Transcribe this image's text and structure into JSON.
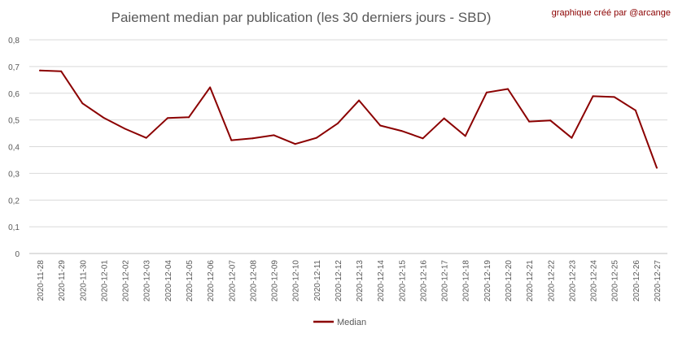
{
  "chart_data": {
    "type": "line",
    "title": "Paiement median par publication (les 30 derniers jours - SBD)",
    "credit": "graphique créé par @arcange",
    "xlabel": "",
    "ylabel": "",
    "ylim": [
      0,
      0.8
    ],
    "yticks": [
      "0",
      "0,1",
      "0,2",
      "0,3",
      "0,4",
      "0,5",
      "0,6",
      "0,7",
      "0,8"
    ],
    "grid": true,
    "legend_position": "bottom",
    "categories": [
      "2020-11-28",
      "2020-11-29",
      "2020-11-30",
      "2020-12-01",
      "2020-12-02",
      "2020-12-03",
      "2020-12-04",
      "2020-12-05",
      "2020-12-06",
      "2020-12-07",
      "2020-12-08",
      "2020-12-09",
      "2020-12-10",
      "2020-12-11",
      "2020-12-12",
      "2020-12-13",
      "2020-12-14",
      "2020-12-15",
      "2020-12-16",
      "2020-12-17",
      "2020-12-18",
      "2020-12-19",
      "2020-12-20",
      "2020-12-21",
      "2020-12-22",
      "2020-12-23",
      "2020-12-24",
      "2020-12-25",
      "2020-12-26",
      "2020-12-27"
    ],
    "series": [
      {
        "name": "Median",
        "color": "#8b0000",
        "values": [
          0.685,
          0.682,
          0.562,
          0.508,
          0.467,
          0.433,
          0.507,
          0.51,
          0.622,
          0.424,
          0.431,
          0.443,
          0.41,
          0.433,
          0.487,
          0.573,
          0.479,
          0.459,
          0.431,
          0.506,
          0.44,
          0.603,
          0.616,
          0.494,
          0.498,
          0.433,
          0.589,
          0.586,
          0.536,
          0.321
        ]
      }
    ]
  }
}
